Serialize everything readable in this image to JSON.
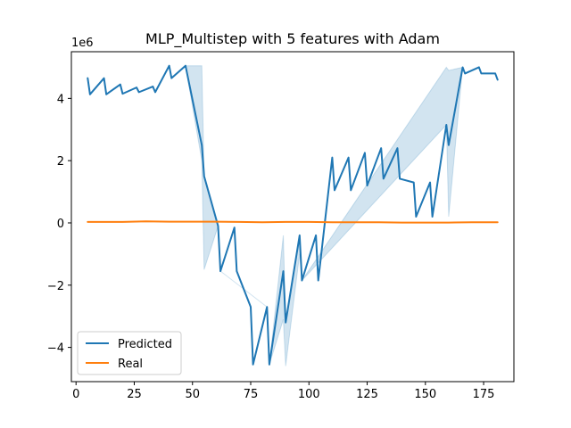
{
  "chart_data": {
    "type": "line",
    "title": "MLP_Multistep with 5 features with Adam",
    "xlabel": "",
    "ylabel": "",
    "xlim": [
      -2,
      188
    ],
    "ylim": [
      -5.1,
      5.5
    ],
    "y_multiplier_label": "1e6",
    "x_ticks": [
      0,
      25,
      50,
      75,
      100,
      125,
      150,
      175
    ],
    "x_tick_labels": [
      "0",
      "25",
      "50",
      "75",
      "100",
      "125",
      "150",
      "175"
    ],
    "y_ticks": [
      -4,
      -2,
      0,
      2,
      4
    ],
    "y_tick_labels": [
      "−4",
      "−2",
      "0",
      "2",
      "4"
    ],
    "legend": {
      "position": "lower-left"
    },
    "series": [
      {
        "name": "Predicted",
        "color": "#1f77b4",
        "x": [
          5,
          6,
          12,
          13,
          19,
          20,
          26,
          27,
          33,
          34,
          40,
          41,
          47,
          54,
          55,
          61,
          62,
          68,
          69,
          75,
          76,
          82,
          83,
          89,
          90,
          96,
          97,
          103,
          104,
          110,
          111,
          117,
          118,
          124,
          125,
          131,
          132,
          138,
          139,
          145,
          146,
          152,
          153,
          159,
          160,
          166,
          167,
          173,
          174,
          180,
          181
        ],
        "y": [
          4.65,
          4.13,
          4.65,
          4.13,
          4.45,
          4.15,
          4.35,
          4.2,
          4.38,
          4.2,
          5.05,
          4.65,
          5.05,
          2.5,
          1.5,
          -0.1,
          -1.55,
          -0.15,
          -1.55,
          -2.7,
          -4.55,
          -2.7,
          -4.55,
          -1.55,
          -3.2,
          -0.4,
          -1.85,
          -0.4,
          -1.85,
          2.1,
          1.05,
          2.1,
          1.05,
          2.25,
          1.2,
          2.4,
          1.42,
          2.4,
          1.42,
          1.3,
          0.2,
          1.3,
          0.2,
          3.15,
          2.5,
          5.0,
          4.8,
          5.0,
          4.8,
          4.8,
          4.6
        ]
      },
      {
        "name": "Real",
        "color": "#ff7f0e",
        "x": [
          5,
          20,
          30,
          40,
          50,
          60,
          70,
          80,
          90,
          100,
          110,
          120,
          130,
          140,
          150,
          160,
          170,
          181
        ],
        "y": [
          0.03,
          0.03,
          0.05,
          0.04,
          0.04,
          0.04,
          0.03,
          0.02,
          0.03,
          0.03,
          0.02,
          0.02,
          0.02,
          0.01,
          0.01,
          0.01,
          0.02,
          0.02
        ]
      }
    ],
    "confidence_band": {
      "series": "Predicted",
      "x": [
        47,
        54,
        55,
        61,
        62,
        82,
        83,
        89,
        90,
        96,
        97,
        159,
        160,
        166
      ],
      "lower": [
        5.05,
        2.0,
        -1.5,
        -0.1,
        -1.55,
        -2.7,
        -4.55,
        -3.1,
        -4.6,
        -1.0,
        -1.85,
        3.15,
        0.2,
        5.0
      ],
      "upper": [
        5.05,
        5.05,
        1.5,
        -0.1,
        -1.55,
        -2.7,
        -4.55,
        -0.4,
        -3.2,
        -0.4,
        -1.85,
        5.0,
        4.9,
        5.0
      ],
      "color": "#1f77b4",
      "opacity": 0.2
    }
  }
}
